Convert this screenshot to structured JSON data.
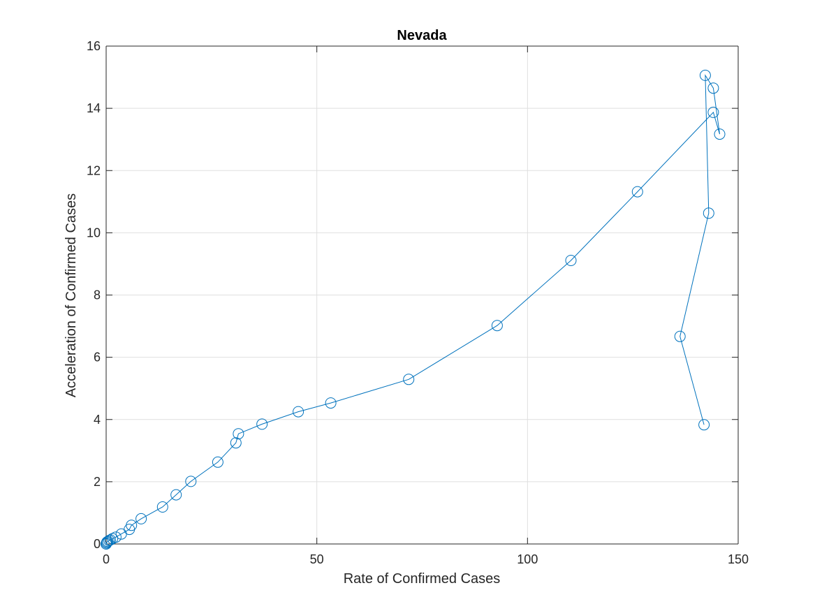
{
  "chart_data": {
    "type": "scatter",
    "title": "Nevada",
    "xlabel": "Rate of Confirmed Cases",
    "ylabel": "Acceleration of Confirmed Cases",
    "xlim": [
      0,
      150
    ],
    "ylim": [
      0,
      16
    ],
    "xticks": [
      0,
      50,
      100,
      150
    ],
    "yticks": [
      0,
      2,
      4,
      6,
      8,
      10,
      12,
      14,
      16
    ],
    "xtick_labels": [
      "0",
      "50",
      "100",
      "150"
    ],
    "ytick_labels": [
      "0",
      "2",
      "4",
      "6",
      "8",
      "10",
      "12",
      "14",
      "16"
    ],
    "grid": true,
    "marker": "open-circle",
    "connected": true,
    "series": [
      {
        "color": "#0072BD",
        "x": [
          0.0,
          0.1,
          0.2,
          0.4,
          0.7,
          1.0,
          1.5,
          2.3,
          3.6,
          5.5,
          6.0,
          8.3,
          13.4,
          16.6,
          20.1,
          26.5,
          30.8,
          31.4,
          37.0,
          45.6,
          53.3,
          71.8,
          92.8,
          110.3,
          126.1,
          144.1,
          145.6,
          144.1,
          142.2,
          143.0,
          136.2,
          141.9
        ],
        "y": [
          0.0,
          0.03,
          0.06,
          0.08,
          0.11,
          0.13,
          0.17,
          0.22,
          0.32,
          0.47,
          0.6,
          0.81,
          1.19,
          1.58,
          2.01,
          2.63,
          3.25,
          3.54,
          3.85,
          4.25,
          4.53,
          5.29,
          7.02,
          9.11,
          11.32,
          13.87,
          13.17,
          14.65,
          15.06,
          10.63,
          6.67,
          3.83
        ]
      }
    ]
  }
}
